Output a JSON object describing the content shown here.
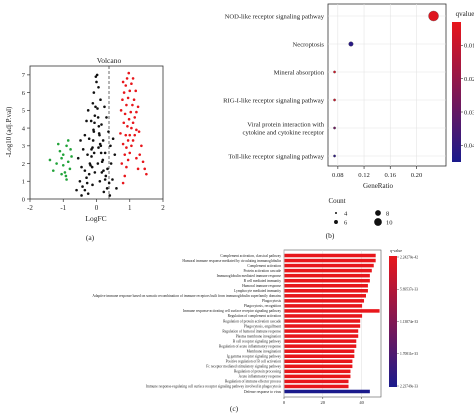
{
  "chart_data": [
    {
      "panel_label": "(a)",
      "type": "scatter",
      "title": "Volcano",
      "xlabel": "LogFC",
      "ylabel": "-Log10 (adj.P.val)",
      "xlim": [
        -2,
        2
      ],
      "ylim": [
        0,
        7.5
      ],
      "x_ticks": [
        "-2",
        "-1",
        "0",
        "1",
        "2"
      ],
      "y_ticks": [
        "0",
        "1",
        "2",
        "3",
        "4",
        "5",
        "6",
        "7"
      ],
      "colors": {
        "up": "#e8161b",
        "down": "#22a33a",
        "ns": "#111111"
      },
      "series": [
        {
          "role": "ns",
          "points": [
            [
              -0.45,
              0.2
            ],
            [
              -0.35,
              0.5
            ],
            [
              -0.28,
              0.9
            ],
            [
              -0.22,
              1.4
            ],
            [
              -0.18,
              1.9
            ],
            [
              -0.15,
              2.4
            ],
            [
              -0.12,
              2.9
            ],
            [
              -0.1,
              3.3
            ],
            [
              -0.08,
              3.8
            ],
            [
              -0.06,
              4.3
            ],
            [
              -0.05,
              4.7
            ],
            [
              -0.03,
              5.2
            ],
            [
              0.03,
              5.1
            ],
            [
              0.05,
              4.6
            ],
            [
              0.07,
              4.1
            ],
            [
              0.09,
              3.6
            ],
            [
              0.11,
              3.1
            ],
            [
              0.14,
              2.6
            ],
            [
              0.17,
              2.1
            ],
            [
              0.21,
              1.6
            ],
            [
              0.26,
              1.1
            ],
            [
              0.32,
              0.6
            ],
            [
              0.4,
              0.2
            ],
            [
              -0.25,
              0.3
            ],
            [
              0.22,
              0.4
            ],
            [
              -0.12,
              0.8
            ],
            [
              0.1,
              1.0
            ],
            [
              -0.3,
              1.2
            ],
            [
              0.28,
              1.3
            ],
            [
              -0.2,
              2.0
            ],
            [
              0.19,
              2.2
            ],
            [
              -0.15,
              2.8
            ],
            [
              0.13,
              3.0
            ],
            [
              -0.09,
              3.9
            ],
            [
              0.08,
              3.7
            ],
            [
              -0.42,
              0.7
            ],
            [
              0.38,
              0.9
            ],
            [
              -0.35,
              1.6
            ],
            [
              0.33,
              1.7
            ],
            [
              -0.27,
              2.5
            ],
            [
              0.26,
              2.6
            ],
            [
              -0.22,
              3.4
            ],
            [
              0.2,
              3.3
            ],
            [
              -0.16,
              4.4
            ],
            [
              0.15,
              4.2
            ],
            [
              -0.11,
              5.4
            ],
            [
              0.12,
              5.6
            ],
            [
              -0.08,
              6.0
            ],
            [
              0.06,
              6.3
            ],
            [
              0.0,
              6.6
            ],
            [
              -0.02,
              6.9
            ],
            [
              0.02,
              7.0
            ],
            [
              -0.5,
              1.0
            ],
            [
              0.48,
              1.1
            ],
            [
              -0.45,
              1.8
            ],
            [
              0.44,
              2.0
            ],
            [
              -0.4,
              2.8
            ],
            [
              0.42,
              3.0
            ],
            [
              -0.35,
              3.6
            ],
            [
              0.36,
              3.8
            ],
            [
              -0.3,
              4.4
            ],
            [
              0.3,
              4.6
            ],
            [
              -0.25,
              5.0
            ],
            [
              0.24,
              5.2
            ],
            [
              -0.55,
              2.3
            ],
            [
              0.55,
              2.5
            ],
            [
              -0.48,
              3.3
            ],
            [
              0.5,
              3.4
            ],
            [
              -0.6,
              0.5
            ],
            [
              0.6,
              0.6
            ],
            [
              -0.05,
              1.5
            ],
            [
              0.04,
              2.0
            ],
            [
              -0.07,
              2.6
            ],
            [
              0.06,
              2.9
            ],
            [
              -0.13,
              1.8
            ],
            [
              0.16,
              1.5
            ]
          ]
        },
        {
          "role": "down",
          "points": [
            [
              -0.9,
              1.1
            ],
            [
              -0.95,
              1.5
            ],
            [
              -1.0,
              1.9
            ],
            [
              -1.05,
              2.3
            ],
            [
              -0.85,
              2.1
            ],
            [
              -1.1,
              2.7
            ],
            [
              -1.0,
              2.5
            ],
            [
              -0.9,
              3.0
            ],
            [
              -1.2,
              2.0
            ],
            [
              -1.3,
              1.6
            ],
            [
              -1.15,
              3.1
            ],
            [
              -0.8,
              1.7
            ],
            [
              -0.75,
              2.4
            ],
            [
              -1.4,
              2.2
            ],
            [
              -1.05,
              1.4
            ],
            [
              -0.85,
              3.3
            ],
            [
              -0.78,
              2.8
            ],
            [
              -0.92,
              1.3
            ]
          ]
        },
        {
          "role": "up",
          "points": [
            [
              0.8,
              0.9
            ],
            [
              0.85,
              1.3
            ],
            [
              0.9,
              1.8
            ],
            [
              0.95,
              2.2
            ],
            [
              1.0,
              2.6
            ],
            [
              1.05,
              3.0
            ],
            [
              1.1,
              3.3
            ],
            [
              1.15,
              3.6
            ],
            [
              1.2,
              3.9
            ],
            [
              0.85,
              2.5
            ],
            [
              0.9,
              2.9
            ],
            [
              0.95,
              3.3
            ],
            [
              1.0,
              3.6
            ],
            [
              1.05,
              4.0
            ],
            [
              1.1,
              4.3
            ],
            [
              1.15,
              4.6
            ],
            [
              1.2,
              4.9
            ],
            [
              1.25,
              5.2
            ],
            [
              0.8,
              3.1
            ],
            [
              0.88,
              3.6
            ],
            [
              0.93,
              4.1
            ],
            [
              0.98,
              4.5
            ],
            [
              1.03,
              4.9
            ],
            [
              1.08,
              5.3
            ],
            [
              1.13,
              5.6
            ],
            [
              0.82,
              4.3
            ],
            [
              0.86,
              4.8
            ],
            [
              0.9,
              5.3
            ],
            [
              0.95,
              5.7
            ],
            [
              1.0,
              6.1
            ],
            [
              1.05,
              6.5
            ],
            [
              1.1,
              6.8
            ],
            [
              0.78,
              5.6
            ],
            [
              0.83,
              6.0
            ],
            [
              0.88,
              6.4
            ],
            [
              0.92,
              6.8
            ],
            [
              0.97,
              7.1
            ],
            [
              1.3,
              2.5
            ],
            [
              1.35,
              3.0
            ],
            [
              1.4,
              2.1
            ],
            [
              1.45,
              1.7
            ],
            [
              1.5,
              1.4
            ],
            [
              1.25,
              1.7
            ],
            [
              0.8,
              6.6
            ],
            [
              1.18,
              6.1
            ],
            [
              0.76,
              2.0
            ],
            [
              0.72,
              3.7
            ],
            [
              0.74,
              5.0
            ],
            [
              1.2,
              2.3
            ],
            [
              1.28,
              3.8
            ]
          ]
        }
      ]
    },
    {
      "panel_label": "(b)",
      "type": "scatter",
      "xlabel": "GeneRatio",
      "x_ticks": [
        "0.08",
        "0.12",
        "0.16",
        "0.20"
      ],
      "xlim": [
        0.065,
        0.245
      ],
      "categories": [
        "NOD-like receptor signaling pathway",
        "Necroptosis",
        "Mineral absorption",
        "RIG-I-like receptor signaling pathway",
        "Viral protein interaction with cytokine and cytokine receptor",
        "Toll-like receptor signaling pathway"
      ],
      "category_lines": [
        [
          "NOD-like receptor signaling pathway"
        ],
        [
          "Necroptosis"
        ],
        [
          "Mineral absorption"
        ],
        [
          "RIG-I-like receptor signaling pathway"
        ],
        [
          "Viral protein interaction with",
          "cytokine and cytokine receptor"
        ],
        [
          "Toll-like receptor signaling pathway"
        ]
      ],
      "points": [
        {
          "category": "NOD-like receptor signaling pathway",
          "gene_ratio": 0.226,
          "count": 11,
          "qvalue": 0.005
        },
        {
          "category": "Necroptosis",
          "gene_ratio": 0.1,
          "count": 6,
          "qvalue": 0.042
        },
        {
          "category": "Mineral absorption",
          "gene_ratio": 0.075,
          "count": 4,
          "qvalue": 0.0075
        },
        {
          "category": "RIG-I-like receptor signaling pathway",
          "gene_ratio": 0.075,
          "count": 4,
          "qvalue": 0.009
        },
        {
          "category": "Viral protein interaction with cytokine and cytokine receptor",
          "gene_ratio": 0.075,
          "count": 4,
          "qvalue": 0.028
        },
        {
          "category": "Toll-like receptor signaling pathway",
          "gene_ratio": 0.075,
          "count": 4,
          "qvalue": 0.041
        }
      ],
      "size_legend": {
        "title": "Count",
        "values": [
          4,
          6,
          8,
          10
        ],
        "labels": [
          "4",
          "6",
          "8",
          "10"
        ]
      },
      "color_legend": {
        "title": "qvalue",
        "range": [
          0.003,
          0.045
        ],
        "ticks": [
          0.01,
          0.02,
          0.03,
          0.04
        ],
        "tick_labels": [
          "0.01",
          "0.02",
          "0.03",
          "0.04"
        ],
        "low_color": "#e8161b",
        "high_color": "#1a1a8c"
      }
    },
    {
      "panel_label": "(c)",
      "type": "bar",
      "orientation": "horizontal",
      "x_ticks": [
        "0",
        "20",
        "40"
      ],
      "xlim": [
        0,
        50
      ],
      "categories": [
        "Complement activation, classical pathway",
        "Humoral immune response mediated by circulating immunoglobulin",
        "Complement activation",
        "Protein activation cascade",
        "Immunoglobulin mediated immune response",
        "B cell mediated immunity",
        "Humoral immune response",
        "Lymphocyte mediated immunity",
        "Adaptive immune response based on somatic recombination of immune receptors built from immunoglobulin superfamily domains",
        "Phagocytosis",
        "Phagocytosis, recognition",
        "Immune response-activating cell surface receptor signaling pathway",
        "Regulation of complement activation",
        "Regulation of protein activation cascade",
        "Phagocytosis, engulfment",
        "Regulation of humoral immune response",
        "Plasma membrane invagination",
        "B cell receptor signaling pathway",
        "Regulation of acute inflammatory response",
        "Membrane invagination",
        "Ig gamma receptor signaling pathway",
        "Positive regulation of B cell activation",
        "Fc receptor mediated stimulatory signaling pathway",
        "Regulation of protein processing",
        "Acute inflammatory response",
        "Regulation of immune effector process",
        "Immune response-regulating cell surface receptor signaling pathway involved in phagocytosis",
        "Defense response to virus"
      ],
      "values": [
        47,
        47,
        46,
        45,
        44,
        44,
        43,
        43,
        42,
        41,
        40,
        49,
        40,
        39,
        39,
        38,
        38,
        37,
        37,
        36,
        36,
        35,
        35,
        34,
        34,
        33,
        33,
        44
      ],
      "bar_colors": [
        "#e8161b",
        "#e8161b",
        "#e8161b",
        "#e8161b",
        "#e8161b",
        "#e8161b",
        "#e8161b",
        "#e8161b",
        "#e8161b",
        "#e8161b",
        "#e8161b",
        "#e8161b",
        "#e8161b",
        "#e8161b",
        "#e8161b",
        "#e8161b",
        "#e8161b",
        "#e8161b",
        "#e8161b",
        "#e8161b",
        "#e8161b",
        "#e8161b",
        "#e8161b",
        "#e8161b",
        "#e8161b",
        "#e8161b",
        "#e8161b",
        "#1a1a8c"
      ],
      "color_legend": {
        "title": "q-value",
        "labels": [
          "2.24270e-42",
          "5.69537e-33",
          "1.13874e-33",
          "1.70811e-33",
          "2.23749e-33"
        ]
      }
    }
  ]
}
